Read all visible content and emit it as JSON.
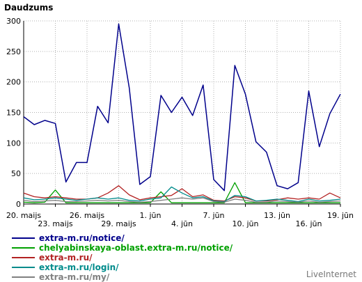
{
  "chart_data": {
    "type": "line",
    "ylabel": "Daudzums",
    "ylim": [
      0,
      300
    ],
    "yticks": [
      0,
      50,
      100,
      150,
      200,
      250,
      300
    ],
    "x_count": 31,
    "xticks": [
      {
        "index": 0,
        "label": "20. maijs",
        "row": 1
      },
      {
        "index": 3,
        "label": "23. maijs",
        "row": 2
      },
      {
        "index": 6,
        "label": "26. maijs",
        "row": 1
      },
      {
        "index": 9,
        "label": "29. maijs",
        "row": 2
      },
      {
        "index": 12,
        "label": "1. jūn",
        "row": 1
      },
      {
        "index": 15,
        "label": "4. jūn",
        "row": 2
      },
      {
        "index": 18,
        "label": "7. jūn",
        "row": 1
      },
      {
        "index": 21,
        "label": "10. jūn",
        "row": 2
      },
      {
        "index": 24,
        "label": "13. jūn",
        "row": 1
      },
      {
        "index": 27,
        "label": "16. jūn",
        "row": 2
      },
      {
        "index": 30,
        "label": "19. jūn",
        "row": 1
      }
    ],
    "series": [
      {
        "name": "extra-m.ru/notice/",
        "color": "#00008b",
        "values": [
          143,
          130,
          137,
          132,
          36,
          68,
          68,
          160,
          133,
          295,
          190,
          32,
          45,
          178,
          150,
          175,
          145,
          195,
          40,
          22,
          227,
          180,
          102,
          85,
          30,
          25,
          35,
          185,
          94,
          148,
          180
        ]
      },
      {
        "name": "chelyabinskaya-oblast.extra-m.ru/notice/",
        "color": "#00a000",
        "values": [
          3,
          2,
          3,
          23,
          2,
          2,
          2,
          2,
          2,
          2,
          2,
          2,
          2,
          20,
          2,
          2,
          2,
          2,
          2,
          2,
          35,
          2,
          2,
          2,
          2,
          2,
          2,
          2,
          2,
          2,
          2
        ]
      },
      {
        "name": "extra-m.ru/",
        "color": "#b22222",
        "values": [
          18,
          12,
          10,
          12,
          10,
          8,
          8,
          10,
          18,
          30,
          15,
          7,
          10,
          12,
          14,
          25,
          12,
          15,
          6,
          5,
          12,
          10,
          5,
          5,
          7,
          10,
          8,
          10,
          8,
          18,
          10
        ]
      },
      {
        "name": "extra-m.ru/login/",
        "color": "#008b8b",
        "values": [
          10,
          7,
          8,
          10,
          8,
          6,
          8,
          10,
          8,
          10,
          6,
          5,
          8,
          10,
          28,
          18,
          10,
          12,
          5,
          4,
          14,
          12,
          5,
          6,
          8,
          6,
          4,
          8,
          5,
          6,
          8
        ]
      },
      {
        "name": "extra-m.ru/my/",
        "color": "#808080",
        "values": [
          6,
          4,
          5,
          6,
          4,
          4,
          5,
          6,
          5,
          6,
          4,
          3,
          4,
          6,
          8,
          10,
          8,
          10,
          4,
          3,
          8,
          6,
          3,
          3,
          5,
          4,
          3,
          5,
          3,
          4,
          5
        ]
      }
    ]
  },
  "credit": "LiveInternet"
}
